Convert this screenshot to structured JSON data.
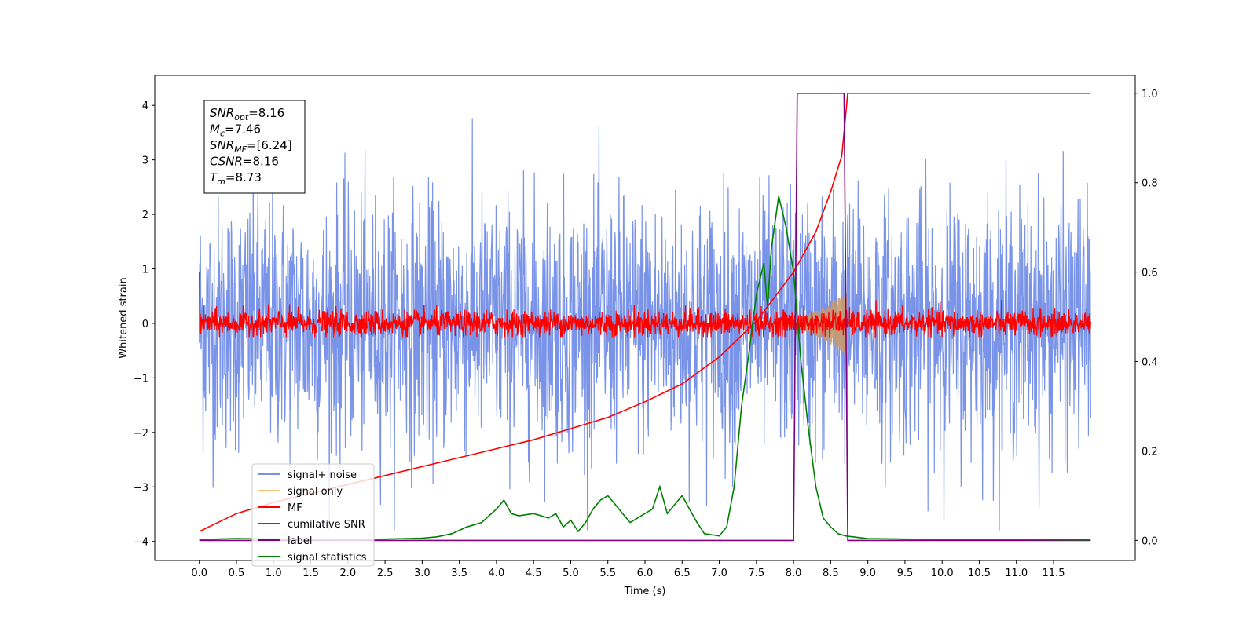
{
  "chart_data": {
    "type": "line",
    "xlabel": "Time (s)",
    "ylabel": "Whitened strain",
    "xlim": [
      -0.6,
      12.6
    ],
    "ylim_left": [
      -4.35,
      4.55
    ],
    "ylim_right": [
      -0.045,
      1.04
    ],
    "xticks": [
      "0.0",
      "0.5",
      "1.0",
      "1.5",
      "2.0",
      "2.5",
      "3.0",
      "3.5",
      "4.0",
      "4.5",
      "5.0",
      "5.5",
      "6.0",
      "6.5",
      "7.0",
      "7.5",
      "8.0",
      "8.5",
      "9.0",
      "9.5",
      "10.0",
      "10.5",
      "11.0",
      "11.5"
    ],
    "yticks_left": [
      "−4",
      "−3",
      "−2",
      "−1",
      "0",
      "1",
      "2",
      "3",
      "4"
    ],
    "yticks_right": [
      "0.0",
      "0.2",
      "0.4",
      "0.6",
      "0.8",
      "1.0"
    ],
    "info_box": [
      {
        "sym": "SNR",
        "sub": "opt",
        "rest": "=8.16"
      },
      {
        "sym": "M",
        "sub": "c",
        "rest": "=7.46"
      },
      {
        "sym": "SNR",
        "sub": "MF",
        "rest": "=[6.24]"
      },
      {
        "sym": "CSNR",
        "sub": "",
        "rest": "=8.16"
      },
      {
        "sym": "T",
        "sub": "m",
        "rest": "=8.73"
      }
    ],
    "legend_position": "lower-left",
    "series": [
      {
        "name": "signal+ noise",
        "color": "#7893e8",
        "axis": "left",
        "description_values": {
          "x_range": [
            0,
            12
          ],
          "amplitude_range": [
            -3.8,
            4.1
          ]
        }
      },
      {
        "name": "signal only",
        "color": "#f5c27a",
        "axis": "left",
        "description_values": {
          "x_range": [
            7.5,
            8.73
          ],
          "peak_amplitude": 0.6
        }
      },
      {
        "name": "MF",
        "color": "#ff0000",
        "axis": "left",
        "description_values": {
          "x_range": [
            0,
            12
          ],
          "amplitude_range": [
            -0.25,
            0.5
          ]
        }
      },
      {
        "name": "cumilative SNR",
        "color": "#ff0000",
        "axis": "right",
        "x": [
          0,
          0.5,
          1,
          1.5,
          2,
          2.5,
          3,
          3.5,
          4,
          4.5,
          5,
          5.5,
          6,
          6.5,
          7,
          7.5,
          8,
          8.3,
          8.5,
          8.65,
          8.73,
          12
        ],
        "y": [
          0.02,
          0.06,
          0.085,
          0.105,
          0.125,
          0.145,
          0.165,
          0.185,
          0.205,
          0.225,
          0.25,
          0.275,
          0.31,
          0.35,
          0.41,
          0.49,
          0.6,
          0.69,
          0.78,
          0.86,
          1.0,
          1.0
        ]
      },
      {
        "name": "label",
        "color": "#800080",
        "axis": "right",
        "x": [
          0,
          8.0,
          8.05,
          8.68,
          8.73,
          12
        ],
        "y": [
          0,
          0,
          1,
          1,
          0,
          0
        ]
      },
      {
        "name": "signal statistics",
        "color": "#008000",
        "axis": "right",
        "x": [
          0,
          0.5,
          1,
          1.5,
          2,
          2.5,
          3,
          3.2,
          3.4,
          3.6,
          3.8,
          4.0,
          4.1,
          4.2,
          4.3,
          4.5,
          4.7,
          4.8,
          4.9,
          5.0,
          5.1,
          5.2,
          5.3,
          5.4,
          5.5,
          5.6,
          5.7,
          5.8,
          5.9,
          6.0,
          6.1,
          6.2,
          6.3,
          6.4,
          6.5,
          6.6,
          6.7,
          6.8,
          7.0,
          7.1,
          7.2,
          7.3,
          7.4,
          7.5,
          7.6,
          7.65,
          7.7,
          7.8,
          7.9,
          8.0,
          8.1,
          8.2,
          8.3,
          8.4,
          8.5,
          8.6,
          8.7,
          8.8,
          9.0,
          9.5,
          10,
          11,
          12
        ],
        "y": [
          0.002,
          0.004,
          0.003,
          0.003,
          0.002,
          0.003,
          0.005,
          0.008,
          0.015,
          0.03,
          0.04,
          0.07,
          0.09,
          0.06,
          0.055,
          0.06,
          0.05,
          0.06,
          0.03,
          0.045,
          0.02,
          0.04,
          0.07,
          0.09,
          0.1,
          0.08,
          0.06,
          0.04,
          0.05,
          0.06,
          0.07,
          0.12,
          0.06,
          0.08,
          0.1,
          0.07,
          0.04,
          0.015,
          0.01,
          0.03,
          0.12,
          0.3,
          0.42,
          0.55,
          0.62,
          0.52,
          0.65,
          0.77,
          0.7,
          0.6,
          0.4,
          0.25,
          0.12,
          0.05,
          0.03,
          0.015,
          0.01,
          0.008,
          0.004,
          0.003,
          0.002,
          0.002,
          0.001
        ]
      }
    ]
  }
}
